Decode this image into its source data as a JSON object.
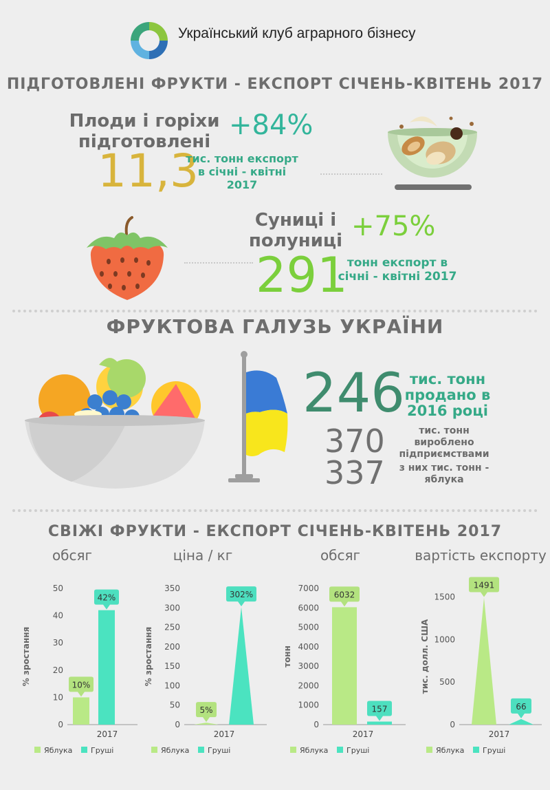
{
  "header": {
    "org_name": "Український клуб аграрного бізнесу"
  },
  "section1": {
    "title": "ПІДГОТОВЛЕНІ ФРУКТИ - ЕКСПОРТ СІЧЕНЬ-КВІТЕНЬ 2017",
    "nuts": {
      "name_line1": "Плоди і горіхи",
      "name_line2": "підготовлені",
      "growth": "+84%",
      "value": "11,3",
      "note_line1": "тис. тонн експорт",
      "note_line2": "в січні - квітні",
      "note_line3": "2017"
    },
    "berries": {
      "name_line1": "Суниці і",
      "name_line2": "полуниці",
      "growth": "+75%",
      "value": "291",
      "note_line1": "тонн експорт в",
      "note_line2": "січні - квітні 2017"
    }
  },
  "section2": {
    "title": "ФРУКТОВА ГАЛУЗЬ УКРАЇНИ",
    "sold_value": "246",
    "sold_line1": "тис. тонн",
    "sold_line2": "продано в",
    "sold_line3": "2016 році",
    "produced_value": "370",
    "produced_line1": "тис. тонн",
    "produced_line2": "вироблено",
    "produced_line3": "підприємствами",
    "apples_value": "337",
    "apples_line1": "з них тис. тонн -",
    "apples_line2": "яблука"
  },
  "section3": {
    "title": "СВІЖІ ФРУКТИ - ЕКСПОРТ СІЧЕНЬ-КВІТЕНЬ 2017"
  },
  "colors": {
    "apples": "#b9e986",
    "pears": "#4be3c0",
    "callout_apples": "#b3e27f",
    "callout_pears": "#4ddfbf"
  },
  "chart_data": [
    {
      "type": "bar",
      "title": "обсяг",
      "ylabel": "% зростання",
      "categories": [
        "2017"
      ],
      "ylim": [
        0,
        50
      ],
      "yticks": [
        0,
        10,
        20,
        30,
        40,
        50
      ],
      "series": [
        {
          "name": "Яблука",
          "values": [
            10
          ],
          "label": "10%"
        },
        {
          "name": "Груші",
          "values": [
            42
          ],
          "label": "42%"
        }
      ]
    },
    {
      "type": "bar",
      "title": "ціна / кг",
      "ylabel": "% зростання",
      "categories": [
        "2017"
      ],
      "ylim": [
        0,
        350
      ],
      "yticks": [
        0,
        50,
        100,
        150,
        200,
        250,
        300,
        350
      ],
      "series": [
        {
          "name": "Яблука",
          "values": [
            5
          ],
          "label": "5%"
        },
        {
          "name": "Груші",
          "values": [
            302
          ],
          "label": "302%"
        }
      ]
    },
    {
      "type": "bar",
      "title": "обсяг",
      "ylabel": "тонн",
      "categories": [
        "2017"
      ],
      "ylim": [
        0,
        7000
      ],
      "yticks": [
        0,
        1000,
        2000,
        3000,
        4000,
        5000,
        6000,
        7000
      ],
      "series": [
        {
          "name": "Яблука",
          "values": [
            6032
          ],
          "label": "6032"
        },
        {
          "name": "Груші",
          "values": [
            157
          ],
          "label": "157"
        }
      ]
    },
    {
      "type": "bar",
      "title": "вартість експорту",
      "ylabel": "тис. долл. США",
      "categories": [
        "2017"
      ],
      "ylim": [
        0,
        1600
      ],
      "yticks": [
        0,
        500,
        1000,
        1500
      ],
      "series": [
        {
          "name": "Яблука",
          "values": [
            1491
          ],
          "label": "1491"
        },
        {
          "name": "Груші",
          "values": [
            66
          ],
          "label": "66"
        }
      ]
    }
  ]
}
